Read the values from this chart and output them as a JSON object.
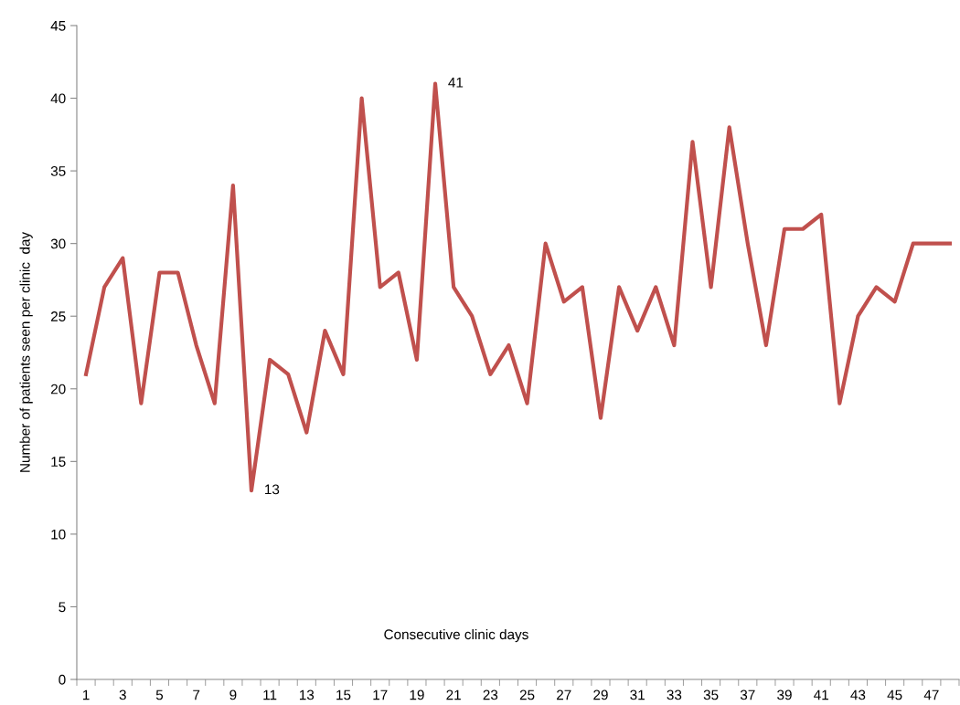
{
  "chart_data": {
    "type": "line",
    "xlabel": "Consecutive clinic days",
    "ylabel": "Number of patients seen per clinic  day",
    "categories": [
      "1",
      null,
      "3",
      null,
      "5",
      null,
      "7",
      null,
      "9",
      null,
      "11",
      null,
      "13",
      null,
      "15",
      null,
      "17",
      null,
      "19",
      null,
      "21",
      null,
      "23",
      null,
      "25",
      null,
      "27",
      null,
      "29",
      null,
      "31",
      null,
      "33",
      null,
      "35",
      null,
      "37",
      null,
      "39",
      null,
      "41",
      null,
      "43",
      null,
      "45",
      null,
      "47",
      null
    ],
    "series": [
      {
        "color": "#c0504d",
        "values": [
          21,
          27,
          29,
          19,
          28,
          28,
          23,
          19,
          34,
          13,
          22,
          21,
          17,
          24,
          21,
          40,
          27,
          28,
          22,
          41,
          27,
          25,
          21,
          23,
          19,
          30,
          26,
          27,
          18,
          27,
          24,
          27,
          23,
          37,
          27,
          38,
          30,
          23,
          31,
          31,
          32,
          19,
          25,
          27,
          26,
          30,
          30,
          30
        ],
        "value_labels": [
          null,
          null,
          null,
          null,
          null,
          null,
          null,
          null,
          null,
          "13",
          null,
          null,
          null,
          null,
          null,
          null,
          null,
          null,
          null,
          "41",
          null,
          null,
          null,
          null,
          null,
          null,
          null,
          null,
          null,
          null,
          null,
          null,
          null,
          null,
          null,
          null,
          null,
          null,
          null,
          null,
          null,
          null,
          null,
          null,
          null,
          null,
          null,
          null
        ]
      }
    ],
    "ylim": [
      0,
      45
    ],
    "yticks": [
      0,
      5,
      10,
      15,
      20,
      25,
      30,
      35,
      40,
      45
    ],
    "grid": false,
    "legend": false,
    "marker": "none",
    "line_style": "solid"
  }
}
